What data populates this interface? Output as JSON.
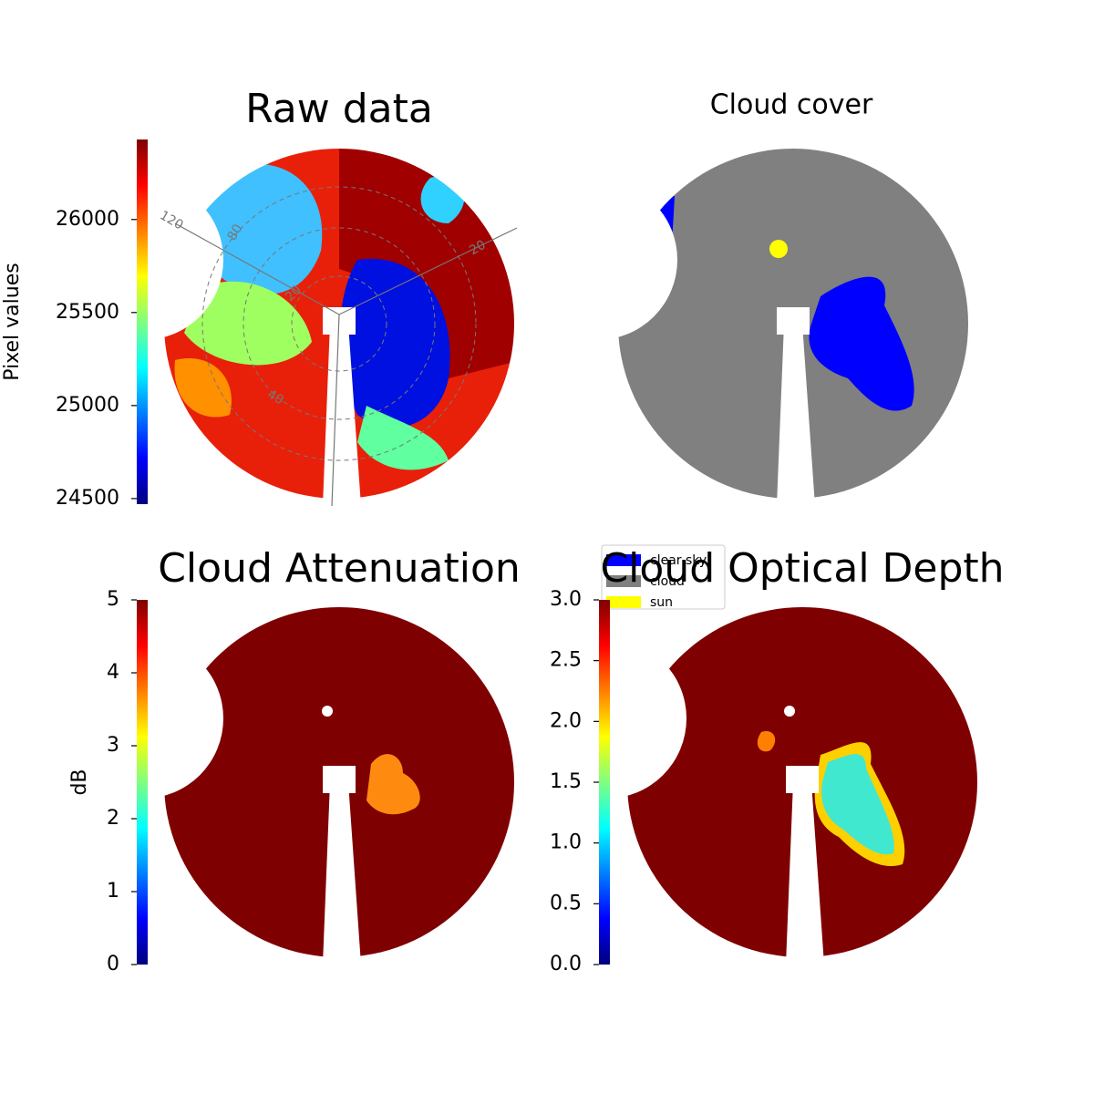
{
  "chart_data": [
    {
      "type": "heatmap",
      "title": "Raw data",
      "colormap": "jet",
      "colorbar_label": "Pixel values",
      "ylim": [
        24470,
        26430
      ],
      "yticks": [
        24500,
        25000,
        25500,
        26000
      ],
      "annotations": [
        "120",
        "80",
        "20",
        "40",
        "20"
      ]
    },
    {
      "type": "category-map",
      "title": "Cloud cover",
      "legend": [
        {
          "name": "clear sky",
          "color": "#0000ff"
        },
        {
          "name": "cloud",
          "color": "#808080"
        },
        {
          "name": "sun",
          "color": "#ffff00"
        }
      ]
    },
    {
      "type": "heatmap",
      "title": "Cloud Attenuation",
      "colormap": "jet",
      "colorbar_label": "dB",
      "ylim": [
        0,
        5
      ],
      "yticks": [
        0,
        1,
        2,
        3,
        4,
        5
      ]
    },
    {
      "type": "heatmap",
      "title": "Cloud Optical Depth",
      "colormap": "jet",
      "ylim": [
        0,
        3
      ],
      "yticks": [
        {
          "value": 0,
          "label": "0.0"
        },
        {
          "value": 0.5,
          "label": "0.5"
        },
        {
          "value": 1,
          "label": "1.0"
        },
        {
          "value": 1.5,
          "label": "1.5"
        },
        {
          "value": 2,
          "label": "2.0"
        },
        {
          "value": 2.5,
          "label": "2.5"
        },
        {
          "value": 3,
          "label": "3.0"
        }
      ]
    }
  ]
}
